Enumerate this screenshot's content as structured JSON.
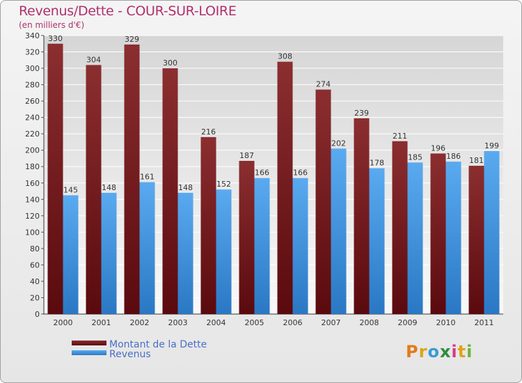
{
  "header": {
    "title": "Revenus/Dette - COUR-SUR-LOIRE",
    "subtitle": "(en milliers d'€)"
  },
  "chart_data": {
    "type": "bar",
    "title": "Revenus/Dette - COUR-SUR-LOIRE",
    "ylabel": "(en milliers d'€)",
    "xlabel": "",
    "categories": [
      "2000",
      "2001",
      "2002",
      "2003",
      "2004",
      "2005",
      "2006",
      "2007",
      "2008",
      "2009",
      "2010",
      "2011"
    ],
    "series": [
      {
        "name": "Montant de la Dette",
        "values": [
          330,
          304,
          329,
          300,
          216,
          187,
          308,
          274,
          239,
          211,
          196,
          181
        ],
        "color_top": "#8b2e30",
        "color_bottom": "#5a0a0e"
      },
      {
        "name": "Revenus",
        "values": [
          145,
          148,
          161,
          148,
          152,
          166,
          166,
          202,
          178,
          185,
          186,
          199
        ],
        "color_top": "#5aaaf0",
        "color_bottom": "#2a78c4"
      }
    ],
    "ylim": [
      0,
      340
    ],
    "ytick_step": 20,
    "grid": true,
    "legend_position": "bottom-left"
  },
  "legend": {
    "items": [
      {
        "label": "Montant de la Dette"
      },
      {
        "label": "Revenus"
      }
    ]
  },
  "branding": {
    "logo_letters": [
      "P",
      "r",
      "o",
      "x",
      "i",
      "t",
      "i"
    ],
    "logo_colors": [
      "#e07b1a",
      "#e0a21a",
      "#3a9ad6",
      "#2e8b3e",
      "#d63a8a",
      "#e0a21a",
      "#6cb33e"
    ]
  }
}
